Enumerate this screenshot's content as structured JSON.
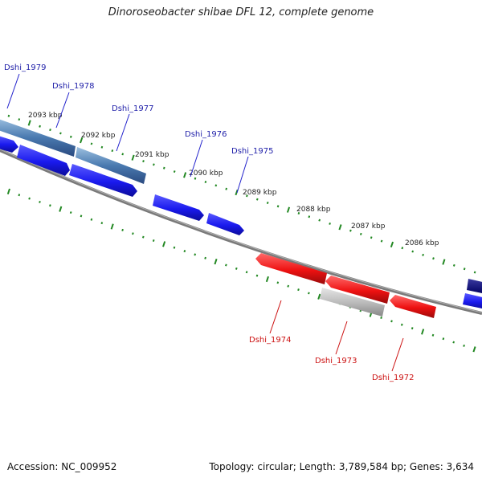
{
  "title": "Dinoroseobacter shibae DFL 12, complete genome",
  "footer": {
    "accession": "Accession: NC_009952",
    "summary": "Topology: circular; Length: 3,789,584 bp; Genes: 3,634"
  },
  "colors": {
    "forward_gene": "#1a1aee",
    "reverse_gene": "#ee1111",
    "pseudo_gene": "#b8b8b8",
    "operon_band": "#4a7ab0",
    "dark_gene": "#000080",
    "backbone": "#808080",
    "tick": "#228822"
  },
  "tick_labels": [
    "2093 kbp",
    "2092 kbp",
    "2091 kbp",
    "2090 kbp",
    "2089 kbp",
    "2088 kbp",
    "2087 kbp",
    "2086 kbp"
  ],
  "genes": [
    {
      "name": "Dshi_1979",
      "strand": "forward"
    },
    {
      "name": "Dshi_1978",
      "strand": "forward"
    },
    {
      "name": "Dshi_1977",
      "strand": "forward"
    },
    {
      "name": "Dshi_1976",
      "strand": "forward"
    },
    {
      "name": "Dshi_1975",
      "strand": "forward"
    },
    {
      "name": "Dshi_1974",
      "strand": "reverse"
    },
    {
      "name": "Dshi_1973",
      "strand": "reverse"
    },
    {
      "name": "Dshi_1972",
      "strand": "reverse"
    }
  ]
}
